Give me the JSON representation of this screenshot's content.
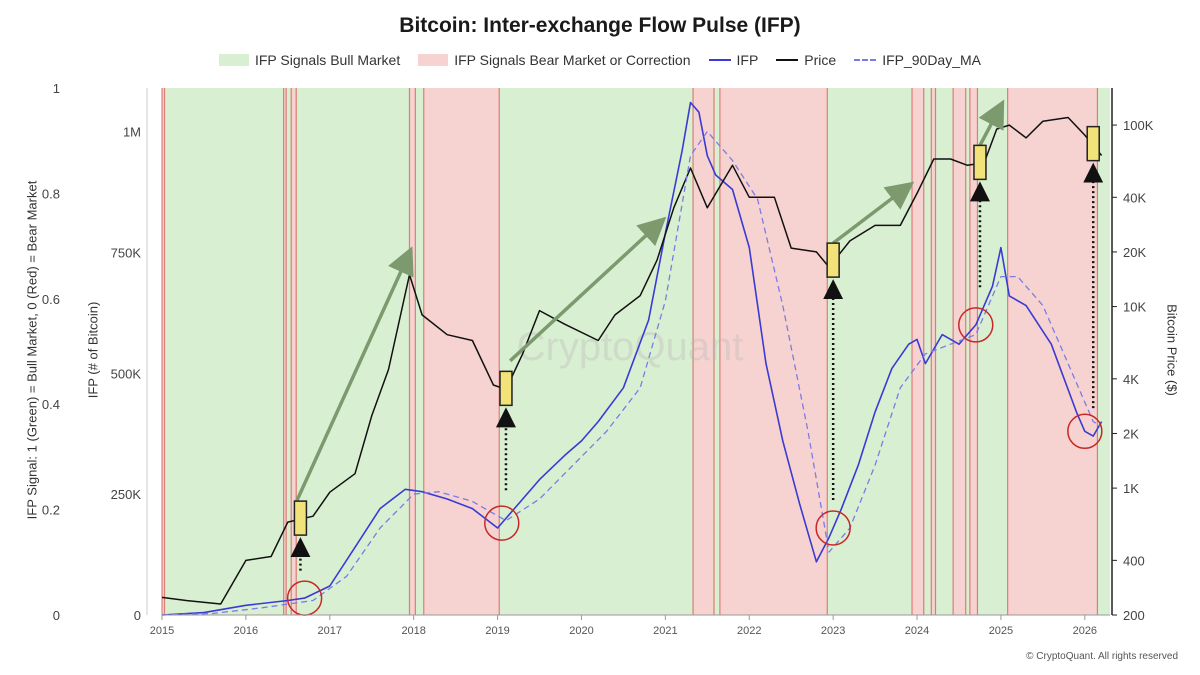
{
  "title": "Bitcoin: Inter-exchange Flow Pulse (IFP)",
  "footer": "© CryptoQuant. All rights reserved",
  "watermark": "CryptoQuant",
  "legend": {
    "bull": "IFP Signals Bull Market",
    "bear": "IFP Signals Bear Market or Correction",
    "ifp": "IFP",
    "price": "Price",
    "ma": "IFP_90Day_MA"
  },
  "colors": {
    "bull_fill": "#d9efd2",
    "bear_fill": "#f6d3d0",
    "bear_edge": "#d9534f",
    "ifp": "#3a3ad4",
    "price": "#111111",
    "ma": "#7b7be8",
    "arrow": "#7c9a6e",
    "highlight": "#f2e27a",
    "circle": "#c62828"
  },
  "axes": {
    "signal_title": "IFP Signal: 1 (Green) = Bull Market, 0 (Red) = Bear Market",
    "ifp_title": "IFP (# of Bitcoin)",
    "price_title": "Bitcoin Price ($)"
  },
  "chart_data": {
    "type": "line",
    "x_range": [
      2015.0,
      2026.3
    ],
    "x_ticks": [
      "2015",
      "2016",
      "2017",
      "2018",
      "2019",
      "2020",
      "2021",
      "2022",
      "2023",
      "2024",
      "2025",
      "2026"
    ],
    "signal_axis": {
      "ylim": [
        0,
        1
      ],
      "ticks": [
        "0",
        "0.2",
        "0.4",
        "0.6",
        "0.8",
        "1"
      ]
    },
    "ifp_axis": {
      "ylim": [
        0,
        1090000
      ],
      "ticks": [
        {
          "value": 0,
          "label": "0"
        },
        {
          "value": 250000,
          "label": "250K"
        },
        {
          "value": 500000,
          "label": "500K"
        },
        {
          "value": 750000,
          "label": "750K"
        },
        {
          "value": 1000000,
          "label": "1M"
        }
      ]
    },
    "price_axis": {
      "scale": "log",
      "ylim": [
        200,
        160000
      ],
      "ticks": [
        {
          "value": 200,
          "label": "200"
        },
        {
          "value": 400,
          "label": "400"
        },
        {
          "value": 1000,
          "label": "1K"
        },
        {
          "value": 2000,
          "label": "2K"
        },
        {
          "value": 4000,
          "label": "4K"
        },
        {
          "value": 10000,
          "label": "10K"
        },
        {
          "value": 20000,
          "label": "20K"
        },
        {
          "value": 40000,
          "label": "40K"
        },
        {
          "value": 100000,
          "label": "100K"
        }
      ]
    },
    "bear_periods": [
      [
        2015.0,
        2015.03
      ],
      [
        2016.45,
        2016.48
      ],
      [
        2016.54,
        2016.6
      ],
      [
        2017.95,
        2018.02
      ],
      [
        2018.12,
        2019.02
      ],
      [
        2021.33,
        2021.58
      ],
      [
        2021.65,
        2022.93
      ],
      [
        2023.94,
        2024.08
      ],
      [
        2024.17,
        2024.22
      ],
      [
        2024.43,
        2024.58
      ],
      [
        2024.63,
        2024.72
      ],
      [
        2025.08,
        2026.15
      ]
    ],
    "series": [
      {
        "name": "IFP",
        "axis": "ifp",
        "x": [
          2015.0,
          2015.5,
          2016.0,
          2016.5,
          2016.7,
          2017.0,
          2017.3,
          2017.6,
          2017.9,
          2018.1,
          2018.4,
          2018.7,
          2019.0,
          2019.2,
          2019.5,
          2019.8,
          2020.0,
          2020.2,
          2020.5,
          2020.8,
          2021.0,
          2021.2,
          2021.3,
          2021.4,
          2021.5,
          2021.6,
          2021.8,
          2022.0,
          2022.2,
          2022.4,
          2022.6,
          2022.8,
          2022.95,
          2023.1,
          2023.3,
          2023.5,
          2023.7,
          2023.9,
          2024.0,
          2024.1,
          2024.3,
          2024.5,
          2024.7,
          2024.9,
          2025.0,
          2025.1,
          2025.3,
          2025.6,
          2025.9,
          2026.0,
          2026.1,
          2026.2
        ],
        "values": [
          0,
          5000,
          20000,
          30000,
          35000,
          60000,
          140000,
          220000,
          260000,
          255000,
          240000,
          220000,
          180000,
          220000,
          280000,
          330000,
          360000,
          400000,
          470000,
          610000,
          790000,
          960000,
          1060000,
          1040000,
          950000,
          910000,
          880000,
          760000,
          520000,
          360000,
          230000,
          110000,
          160000,
          220000,
          310000,
          420000,
          510000,
          560000,
          570000,
          520000,
          580000,
          560000,
          600000,
          680000,
          760000,
          660000,
          640000,
          560000,
          420000,
          380000,
          370000,
          400000
        ]
      },
      {
        "name": "Price",
        "axis": "price",
        "x": [
          2015.0,
          2015.3,
          2015.7,
          2016.0,
          2016.3,
          2016.5,
          2016.8,
          2017.0,
          2017.3,
          2017.5,
          2017.7,
          2017.95,
          2018.1,
          2018.4,
          2018.7,
          2018.95,
          2019.1,
          2019.3,
          2019.5,
          2019.8,
          2020.2,
          2020.4,
          2020.7,
          2020.9,
          2021.1,
          2021.3,
          2021.5,
          2021.8,
          2022.0,
          2022.3,
          2022.5,
          2022.8,
          2022.95,
          2023.2,
          2023.5,
          2023.8,
          2024.0,
          2024.2,
          2024.4,
          2024.6,
          2024.8,
          2024.95,
          2025.1,
          2025.3,
          2025.5,
          2025.8,
          2026.0,
          2026.2
        ],
        "values": [
          250,
          240,
          230,
          400,
          420,
          650,
          700,
          950,
          1200,
          2500,
          4500,
          15000,
          9000,
          7000,
          6500,
          3700,
          3500,
          5500,
          9500,
          8000,
          6500,
          9000,
          11500,
          18000,
          35000,
          58000,
          35000,
          60000,
          40000,
          40000,
          21000,
          20000,
          16500,
          23000,
          28000,
          28000,
          42000,
          65000,
          65000,
          60000,
          62000,
          95000,
          100000,
          85000,
          105000,
          110000,
          88000,
          68000
        ]
      },
      {
        "name": "IFP_90Day_MA",
        "axis": "ifp",
        "x": [
          2015.0,
          2015.6,
          2016.2,
          2016.8,
          2017.2,
          2017.6,
          2018.0,
          2018.3,
          2018.7,
          2019.1,
          2019.5,
          2019.9,
          2020.3,
          2020.7,
          2021.0,
          2021.3,
          2021.5,
          2021.8,
          2022.1,
          2022.4,
          2022.7,
          2022.95,
          2023.2,
          2023.5,
          2023.8,
          2024.1,
          2024.4,
          2024.7,
          2025.0,
          2025.2,
          2025.5,
          2025.8,
          2026.1,
          2026.2
        ],
        "values": [
          0,
          3000,
          15000,
          30000,
          80000,
          180000,
          250000,
          255000,
          235000,
          195000,
          240000,
          310000,
          380000,
          470000,
          650000,
          950000,
          1000000,
          940000,
          860000,
          640000,
          380000,
          130000,
          180000,
          310000,
          470000,
          540000,
          560000,
          580000,
          700000,
          700000,
          640000,
          520000,
          400000,
          390000
        ]
      }
    ],
    "signal_arrows": [
      {
        "from_x": 2016.6,
        "to_x": 2017.95
      },
      {
        "from_x": 2019.15,
        "to_x": 2020.95
      },
      {
        "from_x": 2023.0,
        "to_x": 2023.9
      },
      {
        "from_x": 2024.75,
        "to_x": 2025.0
      }
    ],
    "highlights": [
      2016.65,
      2019.1,
      2023.0,
      2024.75,
      2026.1
    ],
    "circles": [
      2016.7,
      2019.05,
      2023.0,
      2024.7,
      2026.0
    ]
  }
}
